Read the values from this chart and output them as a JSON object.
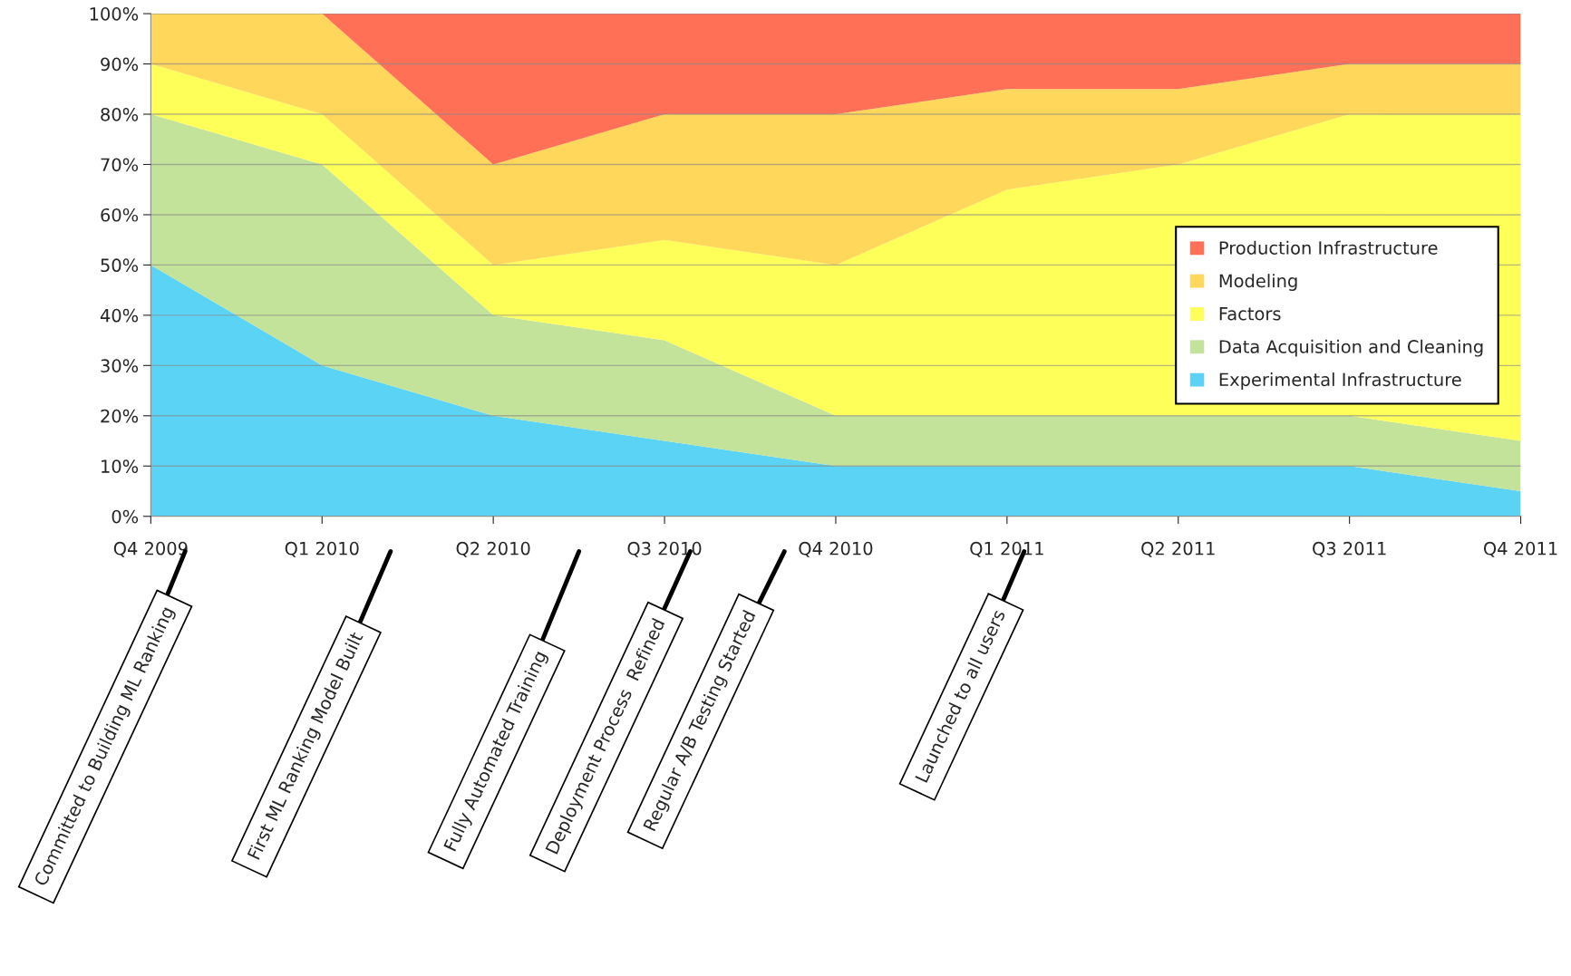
{
  "chart_data": {
    "type": "area",
    "stacked": true,
    "categories": [
      "Q4 2009",
      "Q1 2010",
      "Q2 2010",
      "Q3 2010",
      "Q4 2010",
      "Q1 2011",
      "Q2 2011",
      "Q3 2011",
      "Q4 2011"
    ],
    "series": [
      {
        "name": "Experimental Infrastructure",
        "color": "#5bd3f5",
        "values": [
          50,
          30,
          20,
          15,
          10,
          10,
          10,
          10,
          5
        ]
      },
      {
        "name": "Data Acquisition and Cleaning",
        "color": "#c3e29a",
        "values": [
          30,
          40,
          20,
          20,
          10,
          10,
          10,
          10,
          10
        ]
      },
      {
        "name": "Factors",
        "color": "#ffff5a",
        "values": [
          10,
          10,
          10,
          20,
          30,
          45,
          50,
          60,
          65
        ]
      },
      {
        "name": "Modeling",
        "color": "#ffd75a",
        "values": [
          10,
          20,
          20,
          25,
          30,
          20,
          15,
          10,
          10
        ]
      },
      {
        "name": "Production Infrastructure",
        "color": "#ff7057",
        "values": [
          0,
          0,
          30,
          20,
          20,
          15,
          15,
          10,
          10
        ]
      }
    ],
    "ylim": [
      0,
      100
    ],
    "yticks": [
      {
        "value": 0,
        "label": "0%"
      },
      {
        "value": 10,
        "label": "10%"
      },
      {
        "value": 20,
        "label": "20%"
      },
      {
        "value": 30,
        "label": "30%"
      },
      {
        "value": 40,
        "label": "40%"
      },
      {
        "value": 50,
        "label": "50%"
      },
      {
        "value": 60,
        "label": "60%"
      },
      {
        "value": 70,
        "label": "70%"
      },
      {
        "value": 80,
        "label": "80%"
      },
      {
        "value": 90,
        "label": "90%"
      },
      {
        "value": 100,
        "label": "100%"
      }
    ],
    "grid": "y",
    "legend": "right",
    "annotations": [
      "Committed to Building ML Ranking",
      "First ML Ranking Model Built",
      "Fully Automated Training",
      "Deployment Process  Refined",
      "Regular A/B Testing Started",
      "Launched to all users"
    ]
  }
}
